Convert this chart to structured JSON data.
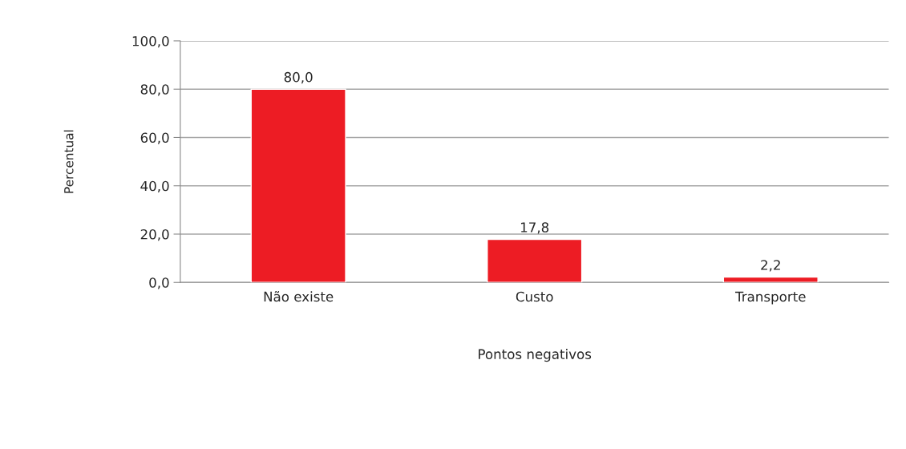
{
  "chart_data": {
    "type": "bar",
    "xlabel": "Pontos negativos",
    "ylabel": "Percentual",
    "categories": [
      "Não existe",
      "Custo",
      "Transporte"
    ],
    "values": [
      80.0,
      17.8,
      2.2
    ],
    "value_labels": [
      "80,0",
      "17,8",
      "2,2"
    ],
    "color": "#ed1c24",
    "ylim": [
      0,
      100
    ],
    "yticks": [
      {
        "value": 0,
        "label": "0,0"
      },
      {
        "value": 20,
        "label": "20,0"
      },
      {
        "value": 40,
        "label": "40,0"
      },
      {
        "value": 60,
        "label": "60,0"
      },
      {
        "value": 80,
        "label": "80,0"
      },
      {
        "value": 100,
        "label": "100,0"
      }
    ],
    "grid": "y",
    "legend": false
  }
}
